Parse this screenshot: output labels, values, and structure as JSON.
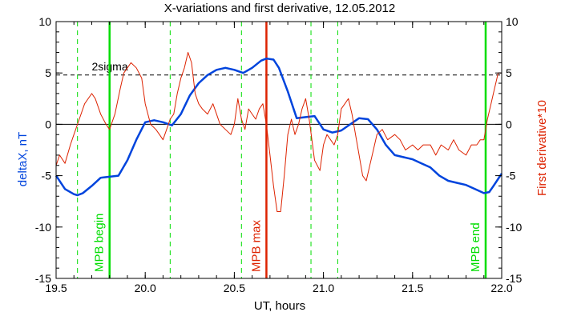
{
  "chart_data": {
    "type": "line",
    "title": "X-variations and first derivative, 12.05.2012",
    "xlabel": "UT, hours",
    "ylabel_left": "deltaX, nT",
    "ylabel_right": "First derivative*10",
    "xlim": [
      19.5,
      22.0
    ],
    "ylim_left": [
      -15,
      10
    ],
    "ylim_right": [
      -15,
      10
    ],
    "x_ticks": [
      "19.5",
      "20.0",
      "20.5",
      "21.0",
      "21.5",
      "22.0"
    ],
    "y_ticks_left": [
      "10",
      "5",
      "0",
      "-5",
      "-10",
      "-15"
    ],
    "y_ticks_right": [
      "10",
      "5",
      "0",
      "-5",
      "-10",
      "-15"
    ],
    "grid": false,
    "colors": {
      "deltaX": "#0044dd",
      "derivative": "#dd2200",
      "mpb_lines": "#00dd00",
      "max_line": "#dd2200",
      "threshold": "#000000"
    },
    "threshold": {
      "label": "2sigma",
      "y": 4.8
    },
    "vertical_markers": [
      {
        "label": "MPB begin",
        "x": 19.8,
        "style": "solid",
        "color": "#00dd00"
      },
      {
        "label": "MPB max",
        "x": 20.68,
        "style": "solid",
        "color": "#dd2200"
      },
      {
        "label": "MPB end",
        "x": 21.91,
        "style": "solid",
        "color": "#00dd00"
      }
    ],
    "dashed_markers_x": [
      19.62,
      20.14,
      20.54,
      20.93,
      21.08
    ],
    "series": [
      {
        "key": "deltaX",
        "axis": "left",
        "x": [
          19.5,
          19.55,
          19.6,
          19.62,
          19.65,
          19.7,
          19.75,
          19.8,
          19.85,
          19.9,
          19.95,
          20.0,
          20.05,
          20.1,
          20.15,
          20.2,
          20.25,
          20.3,
          20.35,
          20.4,
          20.45,
          20.5,
          20.55,
          20.6,
          20.65,
          20.68,
          20.72,
          20.75,
          20.8,
          20.85,
          20.9,
          20.95,
          21.0,
          21.05,
          21.1,
          21.15,
          21.2,
          21.25,
          21.3,
          21.35,
          21.4,
          21.45,
          21.5,
          21.55,
          21.6,
          21.65,
          21.7,
          21.75,
          21.8,
          21.85,
          21.9,
          21.93,
          21.95,
          22.0
        ],
        "y": [
          -5.0,
          -6.3,
          -6.8,
          -6.9,
          -6.7,
          -6.0,
          -5.2,
          -5.1,
          -5.0,
          -3.5,
          -1.5,
          0.2,
          0.4,
          0.2,
          -0.1,
          1.0,
          2.8,
          4.0,
          4.8,
          5.3,
          5.5,
          5.3,
          5.0,
          5.5,
          6.2,
          6.4,
          6.3,
          5.5,
          3.2,
          0.6,
          0.7,
          0.8,
          -0.5,
          -0.8,
          -0.6,
          0.0,
          0.6,
          0.5,
          -0.5,
          -2.0,
          -3.0,
          -3.2,
          -3.4,
          -3.8,
          -4.2,
          -5.0,
          -5.5,
          -5.7,
          -5.9,
          -6.3,
          -6.7,
          -6.6,
          -6.1,
          -4.8
        ]
      },
      {
        "key": "derivative",
        "axis": "right",
        "x": [
          19.5,
          19.52,
          19.55,
          19.58,
          19.6,
          19.63,
          19.66,
          19.7,
          19.72,
          19.75,
          19.78,
          19.8,
          19.83,
          19.86,
          19.88,
          19.9,
          19.92,
          19.95,
          19.98,
          20.0,
          20.03,
          20.06,
          20.08,
          20.1,
          20.12,
          20.14,
          20.16,
          20.18,
          20.2,
          20.22,
          20.24,
          20.26,
          20.28,
          20.3,
          20.32,
          20.35,
          20.38,
          20.4,
          20.42,
          20.45,
          20.48,
          20.5,
          20.52,
          20.54,
          20.56,
          20.58,
          20.6,
          20.62,
          20.64,
          20.66,
          20.68,
          20.7,
          20.72,
          20.74,
          20.76,
          20.78,
          20.8,
          20.82,
          20.84,
          20.86,
          20.88,
          20.9,
          20.92,
          20.95,
          20.98,
          21.0,
          21.02,
          21.04,
          21.06,
          21.08,
          21.1,
          21.12,
          21.14,
          21.16,
          21.18,
          21.2,
          21.22,
          21.24,
          21.26,
          21.28,
          21.3,
          21.33,
          21.36,
          21.4,
          21.43,
          21.46,
          21.5,
          21.53,
          21.56,
          21.6,
          21.63,
          21.66,
          21.7,
          21.73,
          21.76,
          21.8,
          21.83,
          21.86,
          21.88,
          21.9,
          21.92,
          21.94,
          21.96,
          21.98,
          22.0
        ],
        "y": [
          -4.0,
          -3.0,
          -3.8,
          -2.0,
          -1.0,
          0.5,
          2.0,
          3.0,
          2.5,
          1.0,
          0.0,
          -0.5,
          1.0,
          3.5,
          5.0,
          5.5,
          6.0,
          5.5,
          4.5,
          2.0,
          0.0,
          -0.5,
          -1.0,
          -1.5,
          -0.5,
          0.5,
          1.0,
          3.0,
          4.5,
          5.5,
          7.0,
          6.0,
          3.0,
          2.0,
          1.5,
          1.0,
          2.0,
          1.0,
          0.0,
          -0.5,
          -1.0,
          0.0,
          2.5,
          0.5,
          -0.5,
          1.5,
          1.0,
          0.5,
          1.5,
          2.0,
          0.0,
          -3.0,
          -6.0,
          -8.5,
          -8.5,
          -5.0,
          -1.0,
          0.5,
          -1.0,
          0.0,
          1.5,
          2.5,
          0.5,
          -3.5,
          -4.5,
          -2.0,
          -1.0,
          -1.5,
          -2.0,
          -1.0,
          1.5,
          2.0,
          2.5,
          1.0,
          -1.0,
          -3.0,
          -5.0,
          -5.5,
          -4.0,
          -2.5,
          -1.0,
          -0.5,
          -1.5,
          -1.0,
          -1.5,
          -2.5,
          -2.0,
          -2.5,
          -2.0,
          -2.0,
          -3.0,
          -2.0,
          -2.5,
          -1.5,
          -2.5,
          -3.0,
          -2.0,
          -2.0,
          -1.5,
          -1.5,
          0.5,
          2.0,
          3.5,
          5.0,
          5.0
        ]
      }
    ]
  }
}
